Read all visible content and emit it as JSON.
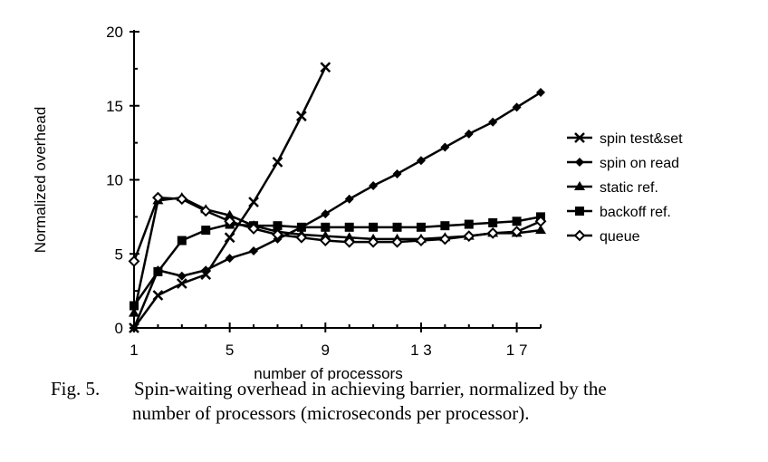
{
  "chart_data": {
    "type": "line",
    "title": "",
    "xlabel": "number of processors",
    "ylabel": "Normalized overhead",
    "xlim": [
      1,
      18
    ],
    "ylim": [
      0,
      20
    ],
    "xticks": [
      1,
      5,
      9,
      13,
      17
    ],
    "xtick_labels": [
      "1",
      "5",
      "9",
      "1 3",
      "1 7"
    ],
    "yticks": [
      0,
      5,
      10,
      15,
      20
    ],
    "grid": false,
    "legend_position": "right",
    "series": [
      {
        "name": "spin test&set",
        "marker": "x",
        "x": [
          1,
          2,
          3,
          4,
          5,
          6,
          7,
          8,
          9
        ],
        "y": [
          0,
          2.2,
          3.0,
          3.6,
          6.1,
          8.5,
          11.2,
          14.3,
          17.6
        ]
      },
      {
        "name": "spin on read",
        "marker": "diamond-filled",
        "x": [
          1,
          2,
          3,
          4,
          5,
          6,
          7,
          8,
          9,
          10,
          11,
          12,
          13,
          14,
          15,
          16,
          17,
          18
        ],
        "y": [
          0,
          3.9,
          3.5,
          3.9,
          4.7,
          5.2,
          6.0,
          6.8,
          7.7,
          8.7,
          9.6,
          10.4,
          11.3,
          12.2,
          13.1,
          13.9,
          14.9,
          15.9
        ]
      },
      {
        "name": "static ref.",
        "marker": "triangle",
        "x": [
          1,
          2,
          3,
          4,
          5,
          6,
          7,
          8,
          9,
          10,
          11,
          12,
          13,
          14,
          15,
          16,
          17,
          18
        ],
        "y": [
          1.0,
          8.6,
          8.8,
          8.0,
          7.6,
          6.9,
          6.5,
          6.3,
          6.2,
          6.1,
          6.0,
          6.0,
          6.0,
          6.1,
          6.2,
          6.4,
          6.4,
          6.6
        ]
      },
      {
        "name": "backoff ref.",
        "marker": "square",
        "x": [
          1,
          2,
          3,
          4,
          5,
          6,
          7,
          8,
          9,
          10,
          11,
          12,
          13,
          14,
          15,
          16,
          17,
          18
        ],
        "y": [
          1.5,
          3.8,
          5.9,
          6.6,
          7.0,
          6.9,
          6.9,
          6.8,
          6.8,
          6.8,
          6.8,
          6.8,
          6.8,
          6.9,
          7.0,
          7.1,
          7.2,
          7.5
        ]
      },
      {
        "name": "queue",
        "marker": "diamond-open",
        "x": [
          1,
          2,
          3,
          4,
          5,
          6,
          7,
          8,
          9,
          10,
          11,
          12,
          13,
          14,
          15,
          16,
          17,
          18
        ],
        "y": [
          4.5,
          8.8,
          8.7,
          7.9,
          7.2,
          6.7,
          6.3,
          6.1,
          5.9,
          5.8,
          5.8,
          5.8,
          5.9,
          6.0,
          6.2,
          6.4,
          6.5,
          7.2
        ]
      }
    ]
  },
  "caption": {
    "label": "Fig. 5.",
    "line1": "Spin-waiting overhead in achieving barrier, normalized by the",
    "line2": "number of processors (microseconds per processor)."
  }
}
